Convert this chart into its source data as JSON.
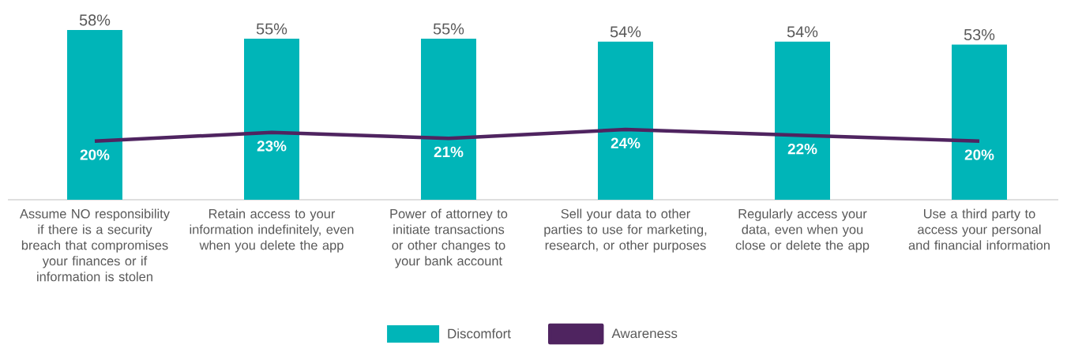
{
  "chart_data": {
    "type": "bar",
    "categories": [
      "Assume NO responsibility if there is a security breach that compromises your finances or if information is stolen",
      "Retain access to your information indefinitely, even when you delete the app",
      "Power of attorney to initiate transactions or other changes to your bank account",
      "Sell your data to other parties to use for marketing, research, or other purposes",
      "Regularly access your data, even when you close or delete the app",
      "Use a third party to access your personal and financial information"
    ],
    "series": [
      {
        "name": "Discomfort",
        "color": "#00b5b8",
        "values": [
          58,
          55,
          55,
          54,
          54,
          53
        ],
        "value_labels": [
          "58%",
          "55%",
          "55%",
          "54%",
          "54%",
          "53%"
        ]
      },
      {
        "name": "Awareness",
        "type": "line",
        "color": "#4f2460",
        "values": [
          20,
          23,
          21,
          24,
          22,
          20
        ],
        "value_labels": [
          "20%",
          "23%",
          "21%",
          "24%",
          "22%",
          "20%"
        ]
      }
    ],
    "legend": "bottom"
  }
}
